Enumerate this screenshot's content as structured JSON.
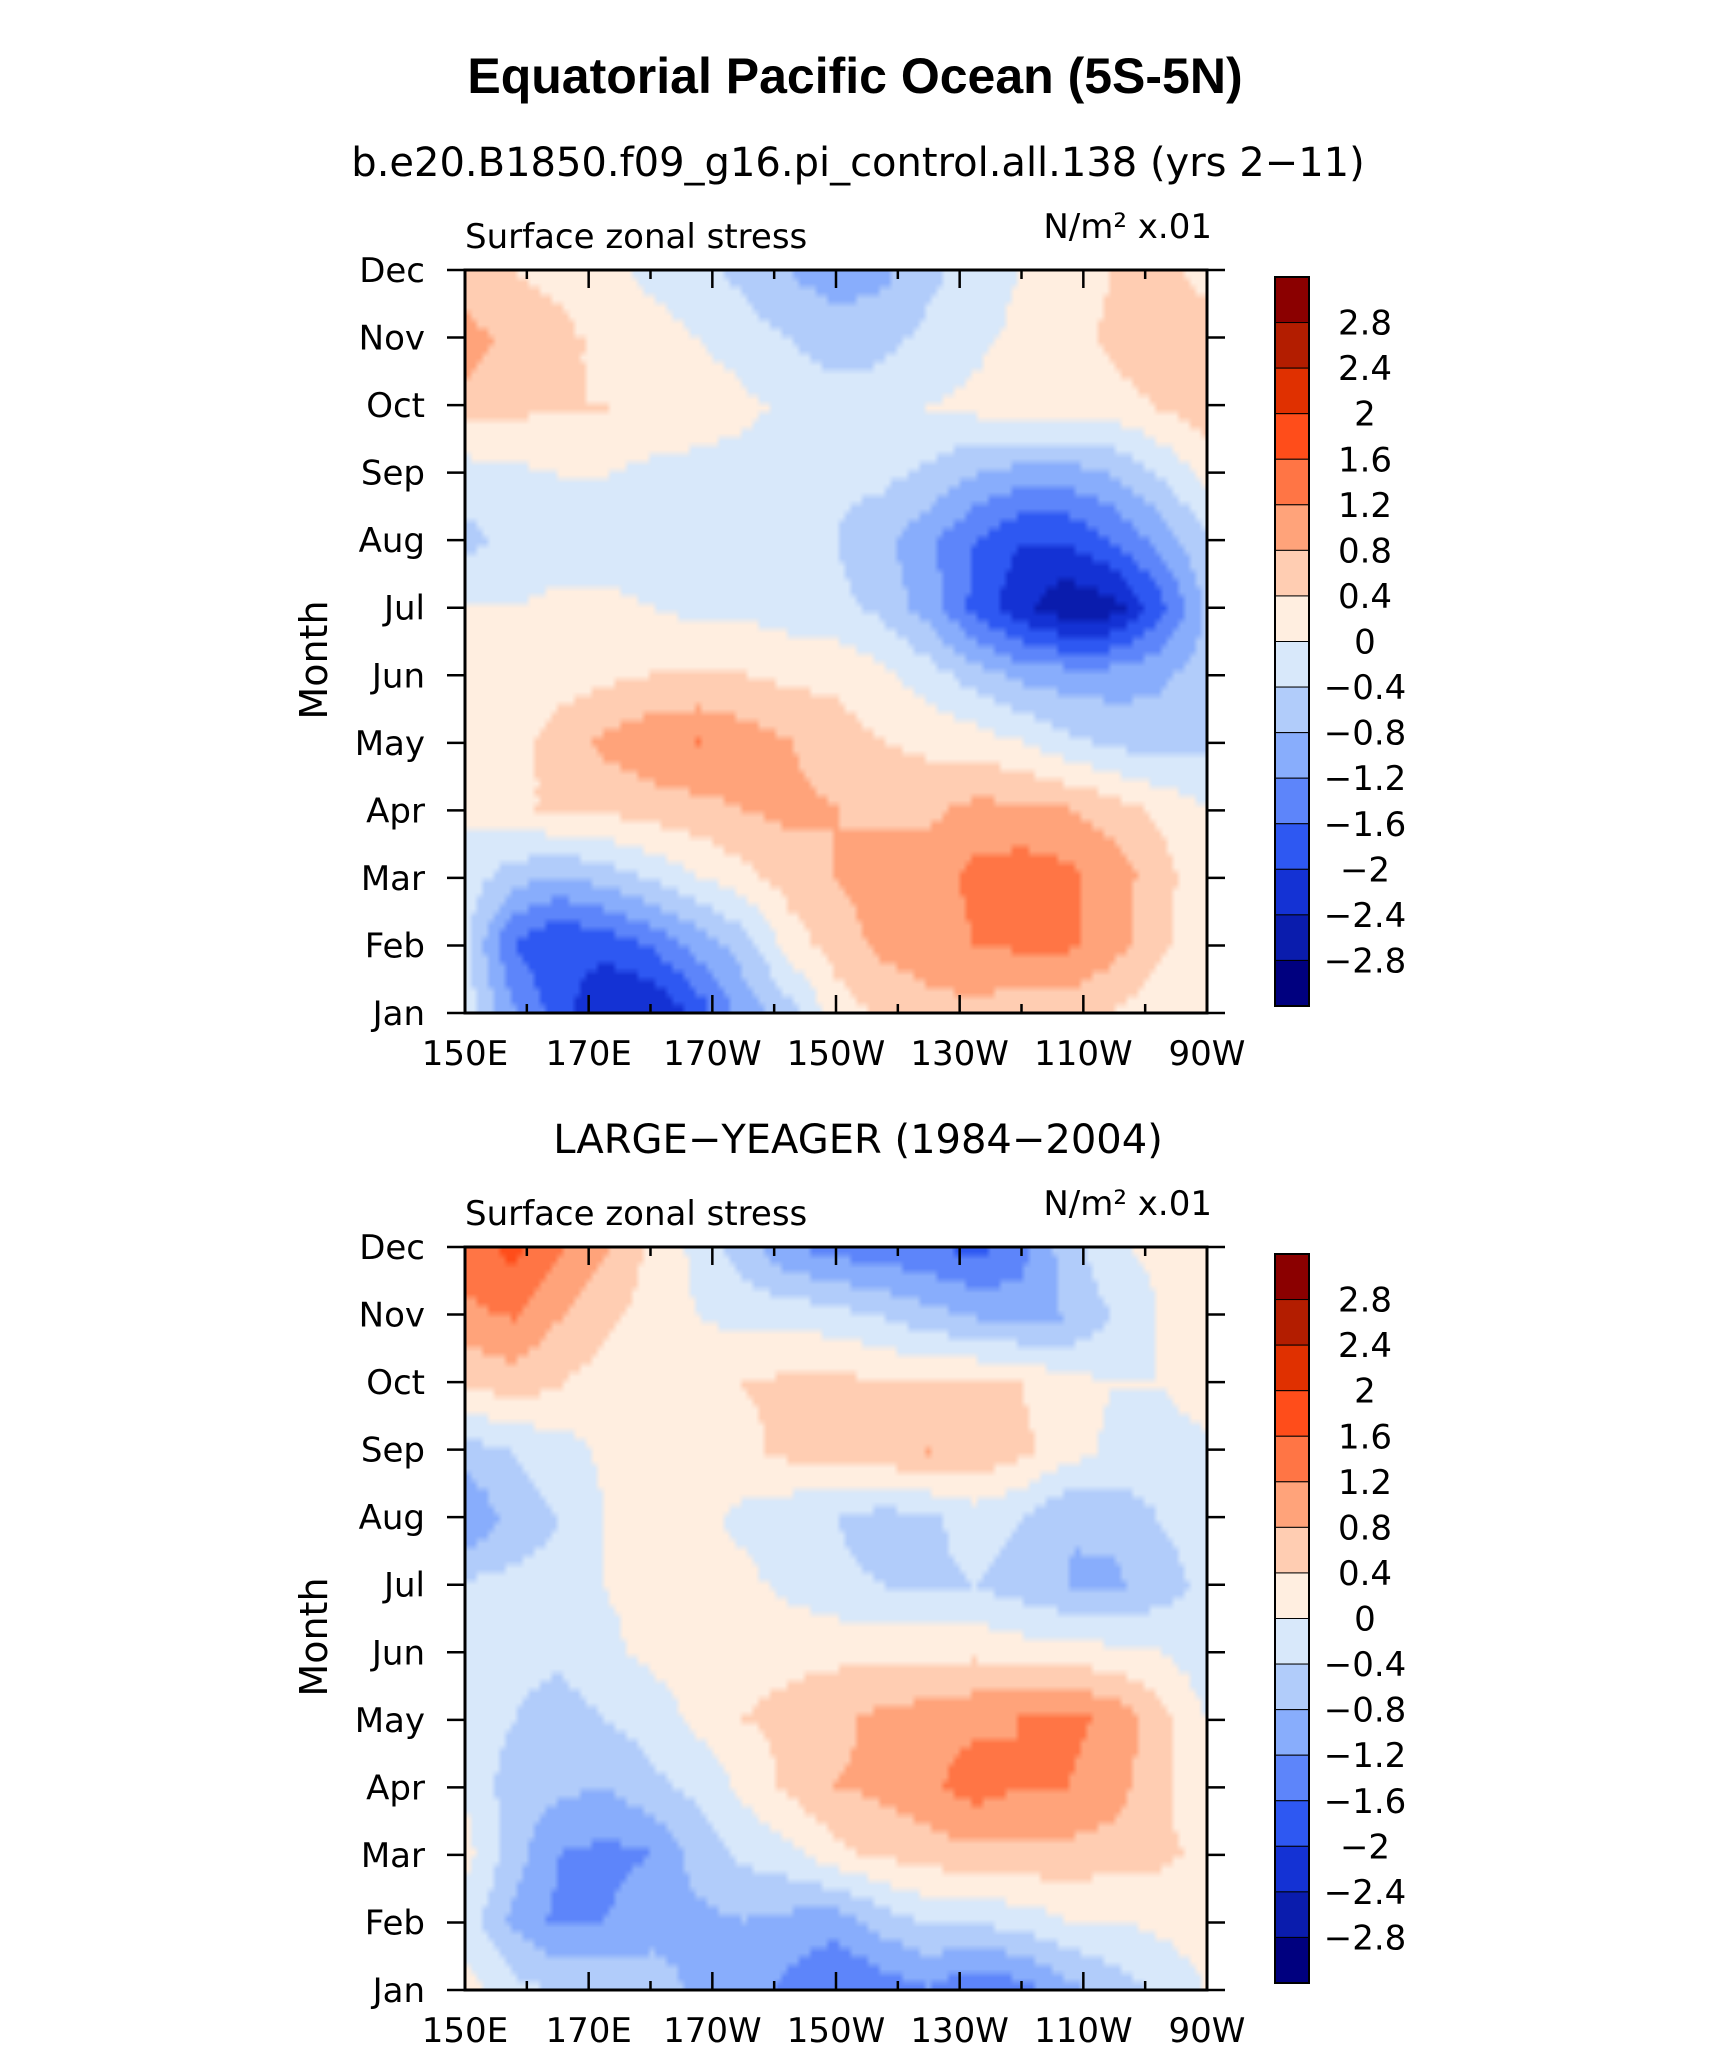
{
  "figure": {
    "title": "Equatorial Pacific Ocean (5S-5N)"
  },
  "colorbar": {
    "labels": [
      "2.8",
      "2.4",
      "2",
      "1.6",
      "1.2",
      "0.8",
      "0.4",
      "0",
      "−0.4",
      "−0.8",
      "−1.2",
      "−1.6",
      "−2",
      "−2.4",
      "−2.8"
    ],
    "colors": [
      "#8b0000",
      "#b31d00",
      "#e03000",
      "#ff4d1a",
      "#ff7545",
      "#ffa37a",
      "#ffcdb2",
      "#ffeee0",
      "#d8e8fa",
      "#b1ccfa",
      "#88adfc",
      "#5d85fa",
      "#2e58f2",
      "#1432d4",
      "#0a1cad",
      "#00007f"
    ]
  },
  "chart_data": [
    {
      "type": "heatmap",
      "title": "b.e20.B1850.f09_g16.pi_control.all.138 (yrs 2−11)",
      "left_label": "Surface zonal stress",
      "units_label": "N/m² x.01",
      "ylabel": "Month",
      "xlabel": "",
      "x_ticks": [
        "150E",
        "170E",
        "170W",
        "150W",
        "130W",
        "110W",
        "90W"
      ],
      "x_values": [
        150,
        170,
        190,
        210,
        230,
        250,
        270
      ],
      "y_ticks": [
        "Jan",
        "Feb",
        "Mar",
        "Apr",
        "May",
        "Jun",
        "Jul",
        "Aug",
        "Sep",
        "Oct",
        "Nov",
        "Dec"
      ],
      "xlim": [
        150,
        270
      ],
      "ylim": [
        1,
        12
      ],
      "grid": [
        [
          -0.2,
          -1.2,
          -1.8,
          -2.4,
          -2.4,
          -1.8,
          -1.0,
          -0.5,
          0.2,
          0.5,
          0.7,
          0.7,
          0.6,
          0.6,
          0.4,
          0.2,
          0.0
        ],
        [
          -0.4,
          -1.6,
          -2.0,
          -1.8,
          -1.5,
          -1.0,
          -0.6,
          0.2,
          0.6,
          0.9,
          1.0,
          1.2,
          1.3,
          1.3,
          1.0,
          0.5,
          0.1
        ],
        [
          -0.2,
          -0.6,
          -0.8,
          -0.6,
          -0.3,
          0.0,
          0.3,
          0.6,
          0.8,
          1.0,
          1.0,
          1.3,
          1.4,
          1.3,
          1.0,
          0.6,
          0.1
        ],
        [
          0.1,
          0.3,
          0.5,
          0.5,
          0.6,
          0.7,
          0.8,
          0.9,
          0.8,
          0.7,
          0.7,
          0.9,
          0.9,
          0.8,
          0.6,
          0.3,
          0.0
        ],
        [
          0.1,
          0.2,
          0.6,
          0.9,
          1.1,
          1.2,
          1.0,
          0.8,
          0.6,
          0.4,
          0.3,
          0.2,
          0.0,
          -0.3,
          -0.5,
          -0.6,
          -0.5
        ],
        [
          0.1,
          0.1,
          0.2,
          0.3,
          0.4,
          0.4,
          0.4,
          0.3,
          0.3,
          0.1,
          -0.2,
          -0.6,
          -0.9,
          -1.0,
          -1.0,
          -0.9,
          -0.6
        ],
        [
          0.0,
          0.0,
          0.1,
          0.1,
          0.0,
          -0.1,
          -0.1,
          -0.2,
          -0.3,
          -0.5,
          -1.0,
          -1.7,
          -2.3,
          -2.7,
          -2.6,
          -1.8,
          -0.8
        ],
        [
          -0.5,
          -0.3,
          -0.2,
          -0.2,
          -0.2,
          -0.2,
          -0.3,
          -0.3,
          -0.4,
          -0.7,
          -1.1,
          -1.6,
          -2.0,
          -2.0,
          -1.6,
          -1.1,
          -0.5
        ],
        [
          -0.2,
          -0.1,
          0.0,
          0.0,
          -0.1,
          -0.2,
          -0.2,
          -0.2,
          -0.3,
          -0.3,
          -0.5,
          -0.8,
          -1.0,
          -1.0,
          -0.8,
          -0.4,
          0.1
        ],
        [
          0.6,
          0.5,
          0.4,
          0.4,
          0.3,
          0.3,
          0.1,
          -0.1,
          -0.2,
          -0.2,
          0.0,
          0.1,
          0.3,
          0.2,
          0.2,
          0.4,
          0.6
        ],
        [
          1.0,
          0.6,
          0.5,
          0.3,
          0.2,
          0.0,
          -0.2,
          -0.4,
          -0.6,
          -0.5,
          -0.3,
          -0.1,
          0.1,
          0.2,
          0.5,
          0.7,
          0.6
        ],
        [
          0.5,
          0.4,
          0.3,
          0.1,
          -0.1,
          -0.3,
          -0.5,
          -0.8,
          -1.0,
          -0.9,
          -0.5,
          -0.2,
          0.0,
          0.2,
          0.4,
          0.5,
          0.3
        ]
      ]
    },
    {
      "type": "heatmap",
      "title": "LARGE−YEAGER (1984−2004)",
      "left_label": "Surface zonal stress",
      "units_label": "N/m² x.01",
      "ylabel": "Month",
      "xlabel": "",
      "x_ticks": [
        "150E",
        "170E",
        "170W",
        "150W",
        "130W",
        "110W",
        "90W"
      ],
      "x_values": [
        150,
        170,
        190,
        210,
        230,
        250,
        270
      ],
      "y_ticks": [
        "Jan",
        "Feb",
        "Mar",
        "Apr",
        "May",
        "Jun",
        "Jul",
        "Aug",
        "Sep",
        "Oct",
        "Nov",
        "Dec"
      ],
      "xlim": [
        150,
        270
      ],
      "ylim": [
        1,
        12
      ],
      "grid": [
        [
          0.1,
          -0.3,
          -0.5,
          -0.5,
          -0.6,
          -0.9,
          -1.0,
          -1.3,
          -1.6,
          -1.4,
          -1.2,
          -1.5,
          -1.3,
          -0.9,
          -0.6,
          -0.3,
          0.0
        ],
        [
          -0.2,
          -0.9,
          -1.3,
          -1.2,
          -1.0,
          -0.9,
          -0.8,
          -0.9,
          -1.0,
          -0.6,
          -0.3,
          -0.3,
          -0.2,
          0.0,
          0.0,
          0.1,
          0.2
        ],
        [
          0.1,
          -0.6,
          -1.2,
          -1.3,
          -1.2,
          -0.6,
          -0.3,
          -0.1,
          0.3,
          0.5,
          0.6,
          0.7,
          0.7,
          0.7,
          0.6,
          0.5,
          0.3
        ],
        [
          -0.1,
          -0.6,
          -0.7,
          -0.8,
          -0.5,
          -0.3,
          0.1,
          0.5,
          0.8,
          0.9,
          1.1,
          1.4,
          1.2,
          1.2,
          1.0,
          0.5,
          0.1
        ],
        [
          -0.2,
          -0.4,
          -0.6,
          -0.4,
          -0.2,
          0.1,
          0.4,
          0.5,
          0.7,
          0.9,
          1.0,
          1.1,
          1.2,
          1.3,
          1.1,
          0.6,
          0.0
        ],
        [
          -0.3,
          -0.3,
          -0.3,
          -0.1,
          0.1,
          0.2,
          0.3,
          0.3,
          0.3,
          0.3,
          0.3,
          0.3,
          0.2,
          0.2,
          0.1,
          0.0,
          -0.2
        ],
        [
          -0.3,
          -0.3,
          -0.3,
          0.0,
          0.2,
          0.2,
          0.1,
          -0.1,
          -0.3,
          -0.4,
          -0.5,
          -0.4,
          -0.6,
          -0.8,
          -0.9,
          -0.6,
          -0.3
        ],
        [
          -1.2,
          -0.6,
          -0.4,
          0.0,
          0.2,
          0.1,
          -0.1,
          -0.3,
          -0.4,
          -0.6,
          -0.5,
          -0.2,
          -0.4,
          -0.8,
          -0.7,
          -0.4,
          -0.2
        ],
        [
          -0.6,
          -0.4,
          -0.2,
          0.1,
          0.2,
          0.3,
          0.3,
          0.5,
          0.6,
          0.7,
          0.8,
          0.7,
          0.5,
          0.2,
          -0.1,
          -0.2,
          -0.1
        ],
        [
          0.4,
          0.6,
          0.4,
          0.2,
          0.1,
          0.2,
          0.4,
          0.5,
          0.5,
          0.5,
          0.4,
          0.5,
          0.4,
          0.2,
          0.0,
          0.0,
          0.2
        ],
        [
          1.1,
          1.2,
          0.8,
          0.5,
          0.2,
          0.0,
          -0.1,
          -0.1,
          -0.2,
          -0.4,
          -0.6,
          -0.8,
          -0.9,
          -0.8,
          -0.4,
          0.0,
          0.3
        ],
        [
          1.4,
          1.7,
          1.2,
          0.8,
          0.3,
          -0.1,
          -0.6,
          -1.1,
          -1.3,
          -1.4,
          -1.5,
          -1.7,
          -1.4,
          -0.6,
          -0.1,
          0.1,
          0.2
        ]
      ]
    }
  ]
}
